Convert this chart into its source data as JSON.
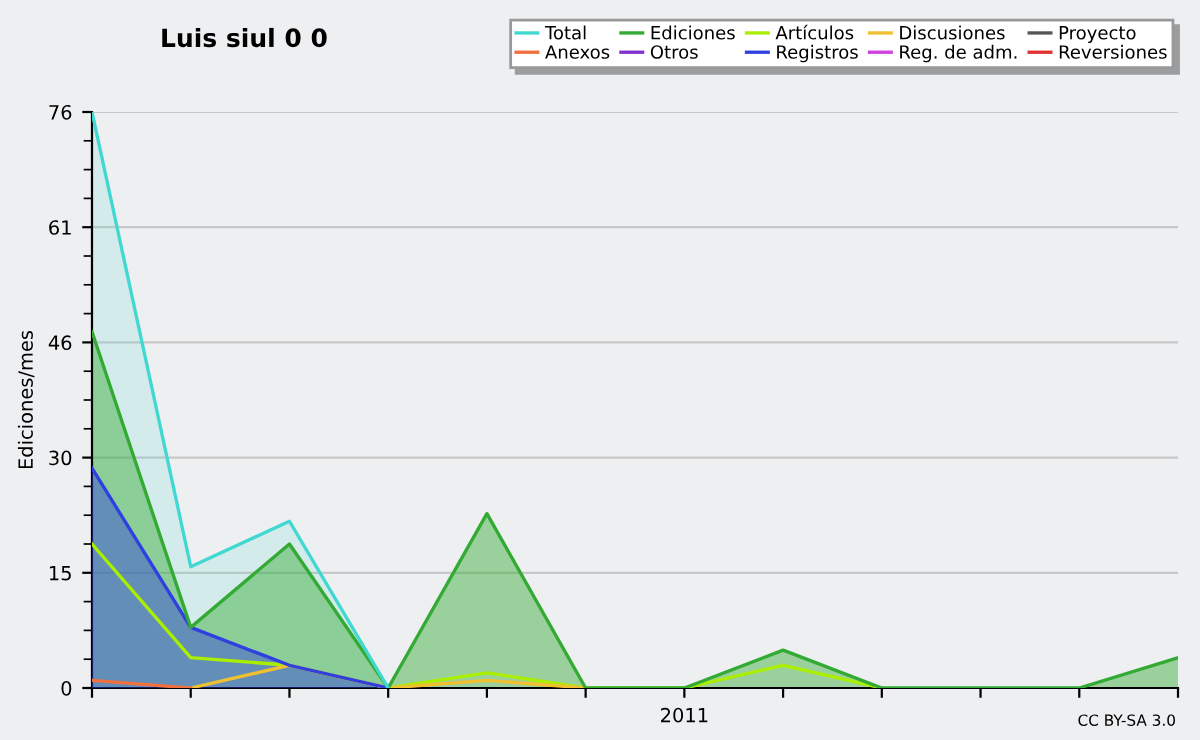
{
  "chart_data": {
    "type": "line",
    "title": "Luis siul 0 0",
    "ylabel": "Ediciones/mes",
    "categories": [
      null,
      null,
      null,
      null,
      null,
      null,
      "2011",
      null,
      null,
      null,
      null,
      null
    ],
    "series": [
      {
        "name": "Total",
        "type": "area",
        "color": "#40d8d0",
        "values": [
          76,
          16,
          22,
          0,
          null,
          null,
          null,
          null,
          null,
          null,
          null,
          null
        ]
      },
      {
        "name": "Ediciones",
        "type": "area",
        "color": "#33aa33",
        "values": [
          47,
          8,
          19,
          0,
          23,
          0,
          0,
          5,
          0,
          0,
          0,
          4
        ]
      },
      {
        "name": "Artículos",
        "color": "#aaee00",
        "values": [
          19,
          4,
          3,
          0,
          2,
          0,
          0,
          3,
          0,
          null,
          null,
          null
        ]
      },
      {
        "name": "Discusiones",
        "color": "#f0c030",
        "values": [
          null,
          0,
          3,
          0,
          1,
          0,
          null,
          null,
          null,
          null,
          null,
          null
        ]
      },
      {
        "name": "Proyecto",
        "color": "#555555",
        "values": [
          null,
          null,
          null,
          null,
          null,
          null,
          null,
          null,
          null,
          null,
          null,
          null
        ]
      },
      {
        "name": "Anexos",
        "color": "#f07040",
        "values": [
          1,
          0,
          null,
          null,
          null,
          null,
          null,
          null,
          null,
          null,
          null,
          null
        ]
      },
      {
        "name": "Otros",
        "color": "#8030d0",
        "values": [
          null,
          null,
          null,
          null,
          null,
          null,
          null,
          null,
          null,
          null,
          null,
          null
        ]
      },
      {
        "name": "Registros",
        "type": "area",
        "color": "#3040e0",
        "values": [
          29,
          8,
          3,
          0,
          null,
          null,
          null,
          null,
          null,
          null,
          null,
          null
        ]
      },
      {
        "name": "Reg. de adm.",
        "color": "#d040e0",
        "values": [
          null,
          null,
          null,
          null,
          null,
          null,
          null,
          null,
          null,
          null,
          null,
          null
        ]
      },
      {
        "name": "Reversiones",
        "color": "#e03030",
        "values": [
          null,
          null,
          null,
          null,
          null,
          null,
          null,
          null,
          null,
          null,
          null,
          null
        ]
      }
    ],
    "ylim": [
      0,
      76
    ],
    "yticks": [
      0,
      {
        "value": 15.2,
        "label": "15"
      },
      {
        "value": 30.4,
        "label": "30"
      },
      {
        "value": 45.6,
        "label": "46"
      },
      {
        "value": 60.8,
        "label": "61"
      },
      76
    ],
    "grid": "y",
    "legend": "top right",
    "marker": "none",
    "line_style": "solid",
    "annotations": [
      "CC BY-SA 3.0"
    ]
  }
}
